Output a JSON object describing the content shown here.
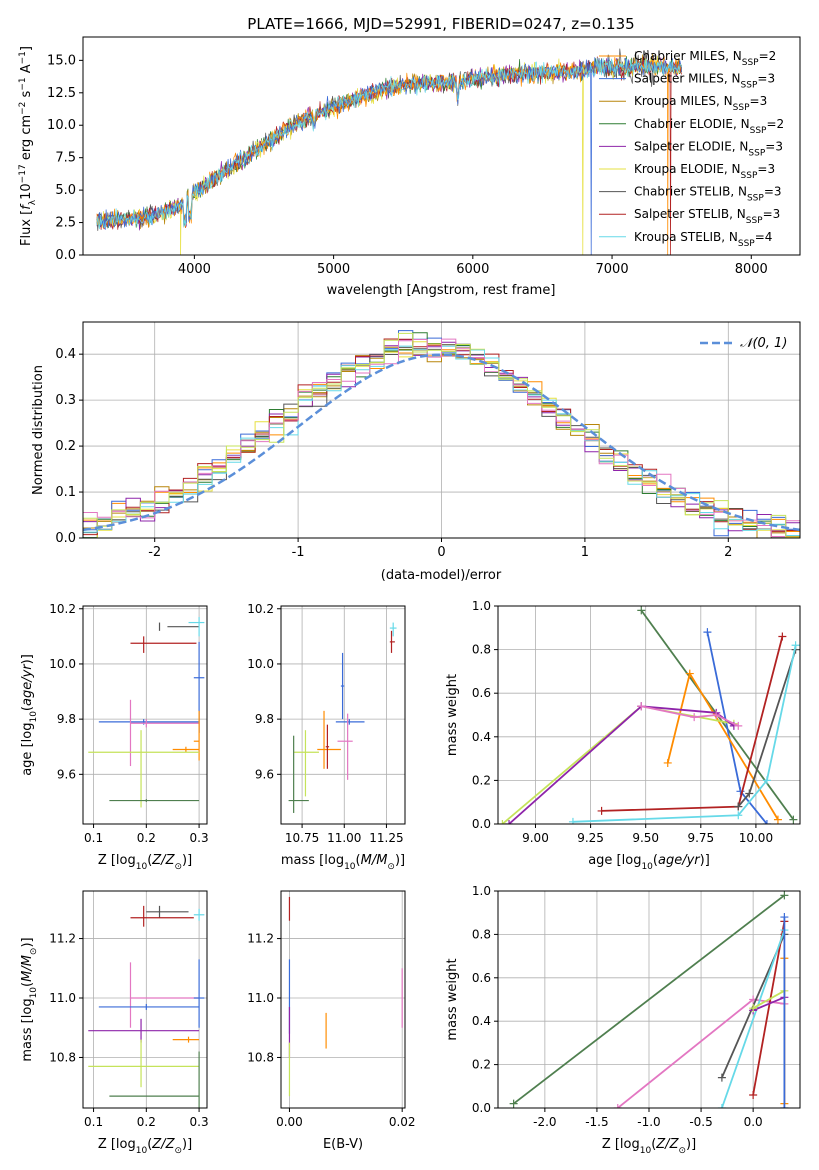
{
  "figure": {
    "title": "PLATE=1666, MJD=52991, FIBERID=0247, z=0.135"
  },
  "colors": {
    "chabrier_miles": "#ff8c00",
    "salpeter_miles": "#3a6bd8",
    "kroupa_miles": "#b8860b",
    "chabrier_elodie": "#2e7d32",
    "salpeter_elodie": "#8e24aa",
    "kroupa_elodie": "#e6e040",
    "chabrier_stelib": "#555555",
    "salpeter_stelib": "#b22222",
    "kroupa_stelib": "#66d9e8",
    "normal_curve": "#5b8fd9",
    "pink": "#e377c2",
    "lightgreen": "#c5e35a",
    "darkgreen": "#4f7f4f"
  },
  "chart_data": [
    {
      "id": "spectrum",
      "type": "line",
      "xlabel": "wavelength [Angstrom, rest frame]",
      "ylabel": "Flux [f_λ 10^-17 erg cm^-2 s^-1 A^-1]",
      "xlim": [
        3200,
        8350
      ],
      "ylim": [
        0,
        16.8
      ],
      "xticks": [
        4000,
        5000,
        6000,
        7000,
        8000
      ],
      "yticks": [
        0.0,
        2.5,
        5.0,
        7.5,
        10.0,
        12.5,
        15.0
      ],
      "grid": false,
      "legend_position": "top-right",
      "legend": [
        {
          "label": "Chabrier MILES, N",
          "sub": "SSP",
          "suffix": "=2",
          "color_key": "chabrier_miles"
        },
        {
          "label": "Salpeter MILES, N",
          "sub": "SSP",
          "suffix": "=3",
          "color_key": "salpeter_miles"
        },
        {
          "label": "Kroupa MILES, N",
          "sub": "SSP",
          "suffix": "=3",
          "color_key": "kroupa_miles"
        },
        {
          "label": "Chabrier ELODIE, N",
          "sub": "SSP",
          "suffix": "=2",
          "color_key": "chabrier_elodie"
        },
        {
          "label": "Salpeter ELODIE, N",
          "sub": "SSP",
          "suffix": "=3",
          "color_key": "salpeter_elodie"
        },
        {
          "label": "Kroupa ELODIE, N",
          "sub": "SSP",
          "suffix": "=3",
          "color_key": "kroupa_elodie"
        },
        {
          "label": "Chabrier STELIB, N",
          "sub": "SSP",
          "suffix": "=3",
          "color_key": "chabrier_stelib"
        },
        {
          "label": "Salpeter STELIB, N",
          "sub": "SSP",
          "suffix": "=3",
          "color_key": "salpeter_stelib"
        },
        {
          "label": "Kroupa STELIB, N",
          "sub": "SSP",
          "suffix": "=4",
          "color_key": "kroupa_stelib"
        }
      ],
      "continuum": [
        [
          3300,
          2.6
        ],
        [
          3500,
          2.7
        ],
        [
          3700,
          3.0
        ],
        [
          3900,
          3.8
        ],
        [
          4000,
          4.8
        ],
        [
          4100,
          5.6
        ],
        [
          4300,
          7.0
        ],
        [
          4500,
          8.5
        ],
        [
          4700,
          10.0
        ],
        [
          4900,
          11.0
        ],
        [
          5100,
          11.8
        ],
        [
          5300,
          12.6
        ],
        [
          5500,
          13.1
        ],
        [
          5700,
          13.3
        ],
        [
          5900,
          13.4
        ],
        [
          6100,
          13.7
        ],
        [
          6300,
          13.9
        ],
        [
          6500,
          14.1
        ],
        [
          6700,
          14.1
        ],
        [
          6900,
          14.5
        ],
        [
          7100,
          14.5
        ],
        [
          7300,
          14.6
        ],
        [
          7500,
          14.4
        ]
      ],
      "cutoffs": [
        [
          3900,
          "kroupa_elodie"
        ],
        [
          6790,
          "kroupa_elodie"
        ],
        [
          6850,
          "salpeter_miles"
        ],
        [
          7400,
          "chabrier_miles"
        ],
        [
          7420,
          "salpeter_stelib"
        ]
      ]
    },
    {
      "id": "residual_hist",
      "type": "histogram",
      "xlabel": "(data-model)/error",
      "ylabel": "Normed distribution",
      "xlim": [
        -2.5,
        2.5
      ],
      "ylim": [
        0,
        0.47
      ],
      "xticks": [
        -2,
        -1,
        0,
        1,
        2
      ],
      "yticks": [
        0.0,
        0.1,
        0.2,
        0.3,
        0.4
      ],
      "grid": true,
      "legend_position": "top-right",
      "legend_label": "𝒩(0, 1)",
      "bin_width": 0.1,
      "model": {
        "mean": 0,
        "sd": 1
      }
    },
    {
      "id": "age_vs_Z",
      "type": "errorbar",
      "xlabel": "Z [log10(Z/Z☉)]",
      "ylabel": "age [log10(age/yr)]",
      "xlim": [
        0.08,
        0.315
      ],
      "ylim": [
        9.42,
        10.21
      ],
      "xticks": [
        0.1,
        0.2,
        0.3
      ],
      "yticks": [
        9.6,
        9.8,
        10.0,
        10.2
      ],
      "grid": true,
      "bars": [
        {
          "x": 0.225,
          "y": 10.135,
          "xerr": [
            0.24,
            0.3
          ],
          "yerr": [
            10.12,
            10.15
          ],
          "color_key": "chabrier_stelib"
        },
        {
          "x": 0.195,
          "y": 10.075,
          "xerr": [
            0.17,
            0.295
          ],
          "yerr": [
            10.04,
            10.1
          ],
          "color_key": "salpeter_stelib"
        },
        {
          "x": 0.3,
          "y": 10.15,
          "xerr": [
            0.28,
            0.31
          ],
          "yerr": [
            10.1,
            10.17
          ],
          "color_key": "kroupa_stelib"
        },
        {
          "x": 0.3,
          "y": 9.95,
          "xerr": [
            0.29,
            0.31
          ],
          "yerr": [
            9.75,
            10.08
          ],
          "color_key": "salpeter_miles"
        },
        {
          "x": 0.195,
          "y": 9.79,
          "xerr": [
            0.11,
            0.3
          ],
          "yerr": [
            9.78,
            9.8
          ],
          "color_key": "salpeter_miles"
        },
        {
          "x": 0.2,
          "y": 9.785,
          "xerr": [
            0.17,
            0.3
          ],
          "yerr": [
            9.77,
            9.8
          ],
          "color_key": "pink"
        },
        {
          "x": 0.17,
          "y": 9.75,
          "xerr": [
            0.17,
            0.17
          ],
          "yerr": [
            9.63,
            9.87
          ],
          "color_key": "pink"
        },
        {
          "x": 0.3,
          "y": 9.72,
          "xerr": [
            0.29,
            0.3
          ],
          "yerr": [
            9.65,
            9.83
          ],
          "color_key": "chabrier_miles"
        },
        {
          "x": 0.275,
          "y": 9.69,
          "xerr": [
            0.25,
            0.3
          ],
          "yerr": [
            9.68,
            9.7
          ],
          "color_key": "chabrier_miles"
        },
        {
          "x": 0.19,
          "y": 9.68,
          "xerr": [
            0.09,
            0.3
          ],
          "yerr": [
            9.48,
            9.76
          ],
          "color_key": "lightgreen"
        },
        {
          "x": 0.2,
          "y": 9.505,
          "xerr": [
            0.13,
            0.3
          ],
          "yerr": [
            9.5,
            9.51
          ],
          "color_key": "darkgreen"
        }
      ]
    },
    {
      "id": "age_vs_mass",
      "type": "errorbar",
      "xlabel": "mass [log10(M/M☉)]",
      "ylabel": "",
      "xlim": [
        10.625,
        11.36
      ],
      "ylim": [
        9.42,
        10.21
      ],
      "xticks": [
        10.75,
        11.0,
        11.25
      ],
      "yticks": [
        9.6,
        9.8,
        10.0,
        10.2
      ],
      "grid": true,
      "bars": [
        {
          "x": 11.29,
          "y": 10.13,
          "xerr": [
            11.27,
            11.31
          ],
          "yerr": [
            10.1,
            10.15
          ],
          "color_key": "kroupa_stelib"
        },
        {
          "x": 11.28,
          "y": 10.08,
          "xerr": [
            11.27,
            11.3
          ],
          "yerr": [
            10.04,
            10.12
          ],
          "color_key": "salpeter_stelib"
        },
        {
          "x": 10.99,
          "y": 9.92,
          "xerr": [
            10.98,
            11.0
          ],
          "yerr": [
            9.8,
            10.04
          ],
          "color_key": "salpeter_miles"
        },
        {
          "x": 11.03,
          "y": 9.79,
          "xerr": [
            10.95,
            11.12
          ],
          "yerr": [
            9.78,
            9.8
          ],
          "color_key": "salpeter_miles"
        },
        {
          "x": 11.02,
          "y": 9.72,
          "xerr": [
            10.96,
            11.05
          ],
          "yerr": [
            9.58,
            9.82
          ],
          "color_key": "pink"
        },
        {
          "x": 10.88,
          "y": 9.69,
          "xerr": [
            10.84,
            10.98
          ],
          "yerr": [
            9.62,
            9.83
          ],
          "color_key": "chabrier_miles"
        },
        {
          "x": 10.9,
          "y": 9.7,
          "xerr": [
            10.89,
            10.91
          ],
          "yerr": [
            9.62,
            9.78
          ],
          "color_key": "salpeter_stelib"
        },
        {
          "x": 10.77,
          "y": 9.68,
          "xerr": [
            10.7,
            10.85
          ],
          "yerr": [
            9.52,
            9.76
          ],
          "color_key": "lightgreen"
        },
        {
          "x": 10.7,
          "y": 9.505,
          "xerr": [
            10.67,
            10.79
          ],
          "yerr": [
            9.46,
            9.74
          ],
          "color_key": "darkgreen"
        }
      ]
    },
    {
      "id": "weight_vs_age",
      "type": "line",
      "xlabel": "age [log10(age/yr)]",
      "ylabel": "mass weight",
      "xlim": [
        8.83,
        10.2
      ],
      "ylim": [
        0,
        1.0
      ],
      "xticks": [
        9.0,
        9.25,
        9.5,
        9.75,
        10.0
      ],
      "yticks": [
        0.0,
        0.2,
        0.4,
        0.6,
        0.8,
        1.0
      ],
      "grid": true,
      "series": [
        {
          "color_key": "darkgreen",
          "x": [
            9.48,
            10.17
          ],
          "y": [
            0.98,
            0.02
          ]
        },
        {
          "color_key": "salpeter_miles",
          "x": [
            9.78,
            9.93,
            10.05
          ],
          "y": [
            0.88,
            0.15,
            0.0
          ]
        },
        {
          "color_key": "chabrier_miles",
          "x": [
            9.6,
            9.7,
            10.1
          ],
          "y": [
            0.28,
            0.69,
            0.02
          ]
        },
        {
          "color_key": "lightgreen",
          "x": [
            8.85,
            9.48,
            9.9
          ],
          "y": [
            0.0,
            0.54,
            0.46
          ]
        },
        {
          "color_key": "salpeter_elodie",
          "x": [
            8.88,
            9.48,
            9.82,
            9.9
          ],
          "y": [
            0.0,
            0.54,
            0.51,
            0.45
          ]
        },
        {
          "color_key": "pink",
          "x": [
            9.48,
            9.72,
            9.82,
            9.92
          ],
          "y": [
            0.54,
            0.49,
            0.5,
            0.45
          ]
        },
        {
          "color_key": "salpeter_stelib",
          "x": [
            9.3,
            9.92,
            10.12
          ],
          "y": [
            0.06,
            0.08,
            0.86
          ]
        },
        {
          "color_key": "chabrier_stelib",
          "x": [
            9.92,
            9.97,
            10.18
          ],
          "y": [
            0.08,
            0.14,
            0.8
          ]
        },
        {
          "color_key": "kroupa_stelib",
          "x": [
            9.17,
            9.92,
            10.05,
            10.18
          ],
          "y": [
            0.01,
            0.04,
            0.2,
            0.82
          ]
        }
      ]
    },
    {
      "id": "mass_vs_Z",
      "type": "errorbar",
      "xlabel": "Z [log10(Z/Z☉)]",
      "ylabel": "mass [log10(M/M☉)]",
      "xlim": [
        0.08,
        0.315
      ],
      "ylim": [
        10.63,
        11.36
      ],
      "xticks": [
        0.1,
        0.2,
        0.3
      ],
      "yticks": [
        10.8,
        11.0,
        11.2
      ],
      "grid": true,
      "bars": [
        {
          "x": 0.225,
          "y": 11.29,
          "xerr": [
            0.2,
            0.28
          ],
          "yerr": [
            11.27,
            11.31
          ],
          "color_key": "chabrier_stelib"
        },
        {
          "x": 0.195,
          "y": 11.27,
          "xerr": [
            0.17,
            0.29
          ],
          "yerr": [
            11.24,
            11.31
          ],
          "color_key": "salpeter_stelib"
        },
        {
          "x": 0.3,
          "y": 11.28,
          "xerr": [
            0.29,
            0.31
          ],
          "yerr": [
            11.26,
            11.3
          ],
          "color_key": "kroupa_stelib"
        },
        {
          "x": 0.17,
          "y": 11.0,
          "xerr": [
            0.17,
            0.3
          ],
          "yerr": [
            10.9,
            11.12
          ],
          "color_key": "pink"
        },
        {
          "x": 0.2,
          "y": 10.97,
          "xerr": [
            0.11,
            0.3
          ],
          "yerr": [
            10.96,
            10.98
          ],
          "color_key": "salpeter_miles"
        },
        {
          "x": 0.3,
          "y": 11.0,
          "xerr": [
            0.29,
            0.31
          ],
          "yerr": [
            10.9,
            11.13
          ],
          "color_key": "salpeter_miles"
        },
        {
          "x": 0.19,
          "y": 10.89,
          "xerr": [
            0.09,
            0.3
          ],
          "yerr": [
            10.85,
            10.93
          ],
          "color_key": "salpeter_elodie"
        },
        {
          "x": 0.28,
          "y": 10.86,
          "xerr": [
            0.25,
            0.3
          ],
          "yerr": [
            10.85,
            10.87
          ],
          "color_key": "chabrier_miles"
        },
        {
          "x": 0.19,
          "y": 10.77,
          "xerr": [
            0.09,
            0.3
          ],
          "yerr": [
            10.7,
            10.86
          ],
          "color_key": "lightgreen"
        },
        {
          "x": 0.3,
          "y": 10.67,
          "xerr": [
            0.13,
            0.3
          ],
          "yerr": [
            10.63,
            10.82
          ],
          "color_key": "darkgreen"
        }
      ]
    },
    {
      "id": "mass_vs_ebv",
      "type": "errorbar",
      "xlabel": "E(B-V)",
      "ylabel": "",
      "xlim": [
        -0.0015,
        0.0205
      ],
      "ylim": [
        10.63,
        11.36
      ],
      "xticks": [
        0.0,
        0.02
      ],
      "yticks": [
        10.8,
        11.0,
        11.2
      ],
      "grid": true,
      "bars": [
        {
          "x": 0.0,
          "y": 11.3,
          "xerr": [
            0.0,
            0.0
          ],
          "yerr": [
            11.26,
            11.34
          ],
          "color_key": "salpeter_stelib"
        },
        {
          "x": 0.0,
          "y": 11.0,
          "xerr": [
            0.0,
            0.0
          ],
          "yerr": [
            10.88,
            11.13
          ],
          "color_key": "salpeter_miles"
        },
        {
          "x": 0.0,
          "y": 10.88,
          "xerr": [
            0.0,
            0.0
          ],
          "yerr": [
            10.8,
            10.97
          ],
          "color_key": "salpeter_elodie"
        },
        {
          "x": 0.0,
          "y": 10.75,
          "xerr": [
            0.0,
            0.0
          ],
          "yerr": [
            10.67,
            10.85
          ],
          "color_key": "lightgreen"
        },
        {
          "x": 0.0065,
          "y": 10.88,
          "xerr": [
            0.0065,
            0.0065
          ],
          "yerr": [
            10.83,
            10.95
          ],
          "color_key": "chabrier_miles"
        },
        {
          "x": 0.02,
          "y": 11.0,
          "xerr": [
            0.02,
            0.02
          ],
          "yerr": [
            10.9,
            11.1
          ],
          "color_key": "pink"
        }
      ]
    },
    {
      "id": "weight_vs_Z",
      "type": "line",
      "xlabel": "Z [log10(Z/Z☉)]",
      "ylabel": "mass weight",
      "xlim": [
        -2.45,
        0.45
      ],
      "ylim": [
        0,
        1.0
      ],
      "xticks": [
        -2.0,
        -1.5,
        -1.0,
        -0.5,
        0.0
      ],
      "yticks": [
        0.0,
        0.2,
        0.4,
        0.6,
        0.8,
        1.0
      ],
      "grid": true,
      "series": [
        {
          "color_key": "darkgreen",
          "x": [
            -2.3,
            0.3
          ],
          "y": [
            0.02,
            0.98
          ]
        },
        {
          "color_key": "pink",
          "x": [
            -1.3,
            0.0,
            0.3
          ],
          "y": [
            0.0,
            0.5,
            0.48
          ]
        },
        {
          "color_key": "chabrier_stelib",
          "x": [
            -0.3,
            0.3
          ],
          "y": [
            0.14,
            0.8
          ]
        },
        {
          "color_key": "salpeter_stelib",
          "x": [
            0.0,
            0.3
          ],
          "y": [
            0.06,
            0.86
          ]
        },
        {
          "color_key": "kroupa_stelib",
          "x": [
            -0.3,
            0.3
          ],
          "y": [
            0.0,
            0.82
          ]
        },
        {
          "color_key": "salpeter_elodie",
          "x": [
            0.0,
            0.3
          ],
          "y": [
            0.45,
            0.51
          ]
        },
        {
          "color_key": "lightgreen",
          "x": [
            0.0,
            0.3
          ],
          "y": [
            0.46,
            0.54
          ]
        },
        {
          "color_key": "chabrier_miles",
          "x": [
            0.3,
            0.3
          ],
          "y": [
            0.02,
            0.69
          ]
        },
        {
          "color_key": "salpeter_miles",
          "x": [
            0.3,
            0.3
          ],
          "y": [
            0.0,
            0.88
          ]
        }
      ]
    }
  ]
}
